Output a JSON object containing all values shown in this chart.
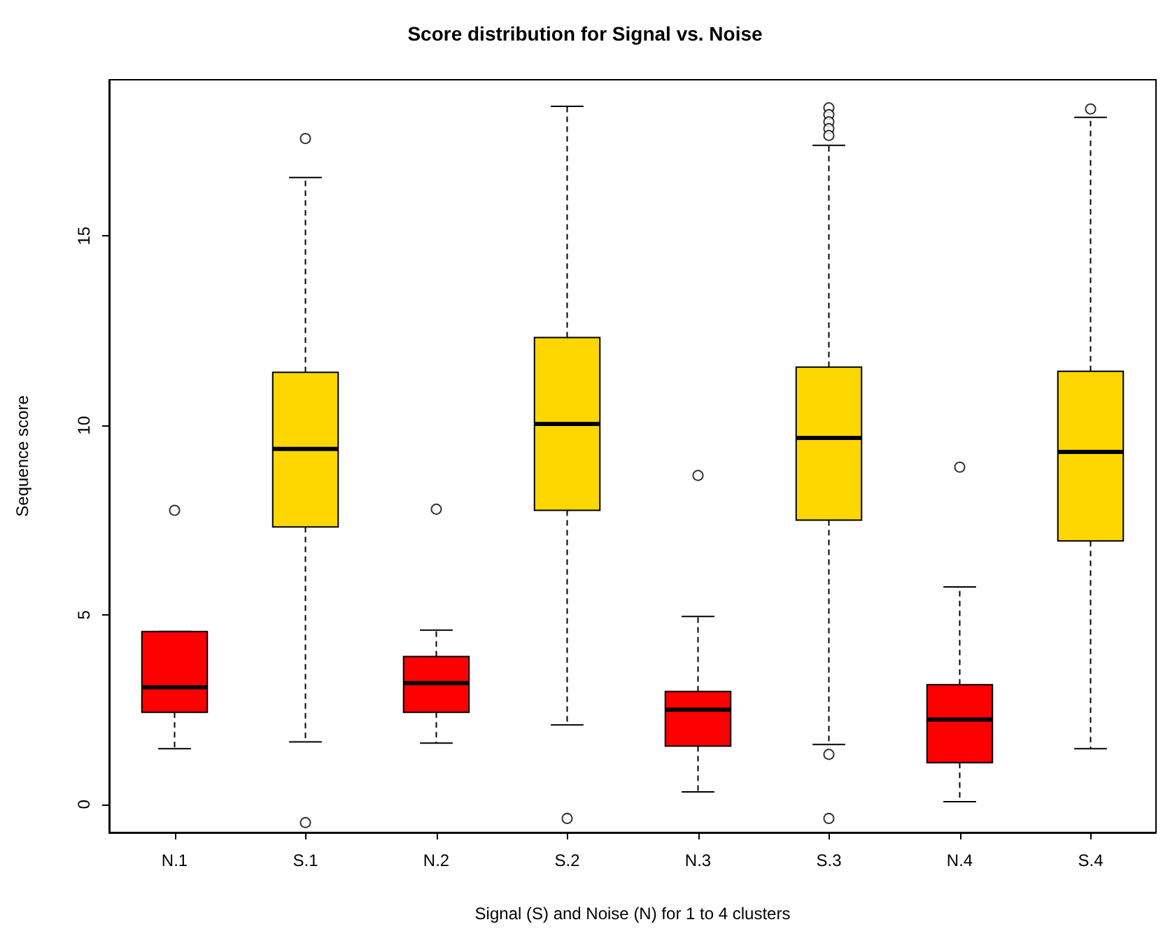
{
  "chart_data": {
    "type": "box",
    "title": "Score distribution for Signal vs. Noise",
    "xlabel": "Signal (S) and Noise (N) for 1 to 4 clusters",
    "ylabel": "Sequence score",
    "categories": [
      "N.1",
      "S.1",
      "N.2",
      "S.2",
      "N.3",
      "S.3",
      "N.4",
      "S.4"
    ],
    "colors": [
      "#ff0000",
      "#ffd700",
      "#ff0000",
      "#ffd700",
      "#ff0000",
      "#ffd700",
      "#ff0000",
      "#ffd700"
    ],
    "boxes": [
      {
        "low": 1.47,
        "q1": 2.43,
        "median": 3.09,
        "q3": 4.56,
        "high": 4.56,
        "outliers": [
          7.76
        ]
      },
      {
        "low": 1.65,
        "q1": 7.32,
        "median": 9.38,
        "q3": 11.4,
        "high": 16.54,
        "outliers": [
          17.57,
          -0.48
        ]
      },
      {
        "low": 1.62,
        "q1": 2.43,
        "median": 3.2,
        "q3": 3.9,
        "high": 4.6,
        "outliers": [
          7.79
        ]
      },
      {
        "low": 2.1,
        "q1": 7.76,
        "median": 10.04,
        "q3": 12.32,
        "high": 18.42,
        "outliers": [
          -0.37
        ]
      },
      {
        "low": 0.33,
        "q1": 1.54,
        "median": 2.5,
        "q3": 2.98,
        "high": 4.96,
        "outliers": [
          8.68
        ]
      },
      {
        "low": 1.58,
        "q1": 7.5,
        "median": 9.67,
        "q3": 11.54,
        "high": 17.39,
        "outliers": [
          18.38,
          18.2,
          18.01,
          17.83,
          17.65,
          1.32,
          -0.37
        ]
      },
      {
        "low": 0.07,
        "q1": 1.1,
        "median": 2.24,
        "q3": 3.16,
        "high": 5.74,
        "outliers": [
          8.9
        ]
      },
      {
        "low": 1.47,
        "q1": 6.95,
        "median": 9.3,
        "q3": 11.43,
        "high": 18.13,
        "outliers": [
          18.35
        ]
      }
    ],
    "ylim": [
      -0.74,
      19.12
    ],
    "yticks": [
      0,
      5,
      10,
      15
    ],
    "grid": false
  }
}
